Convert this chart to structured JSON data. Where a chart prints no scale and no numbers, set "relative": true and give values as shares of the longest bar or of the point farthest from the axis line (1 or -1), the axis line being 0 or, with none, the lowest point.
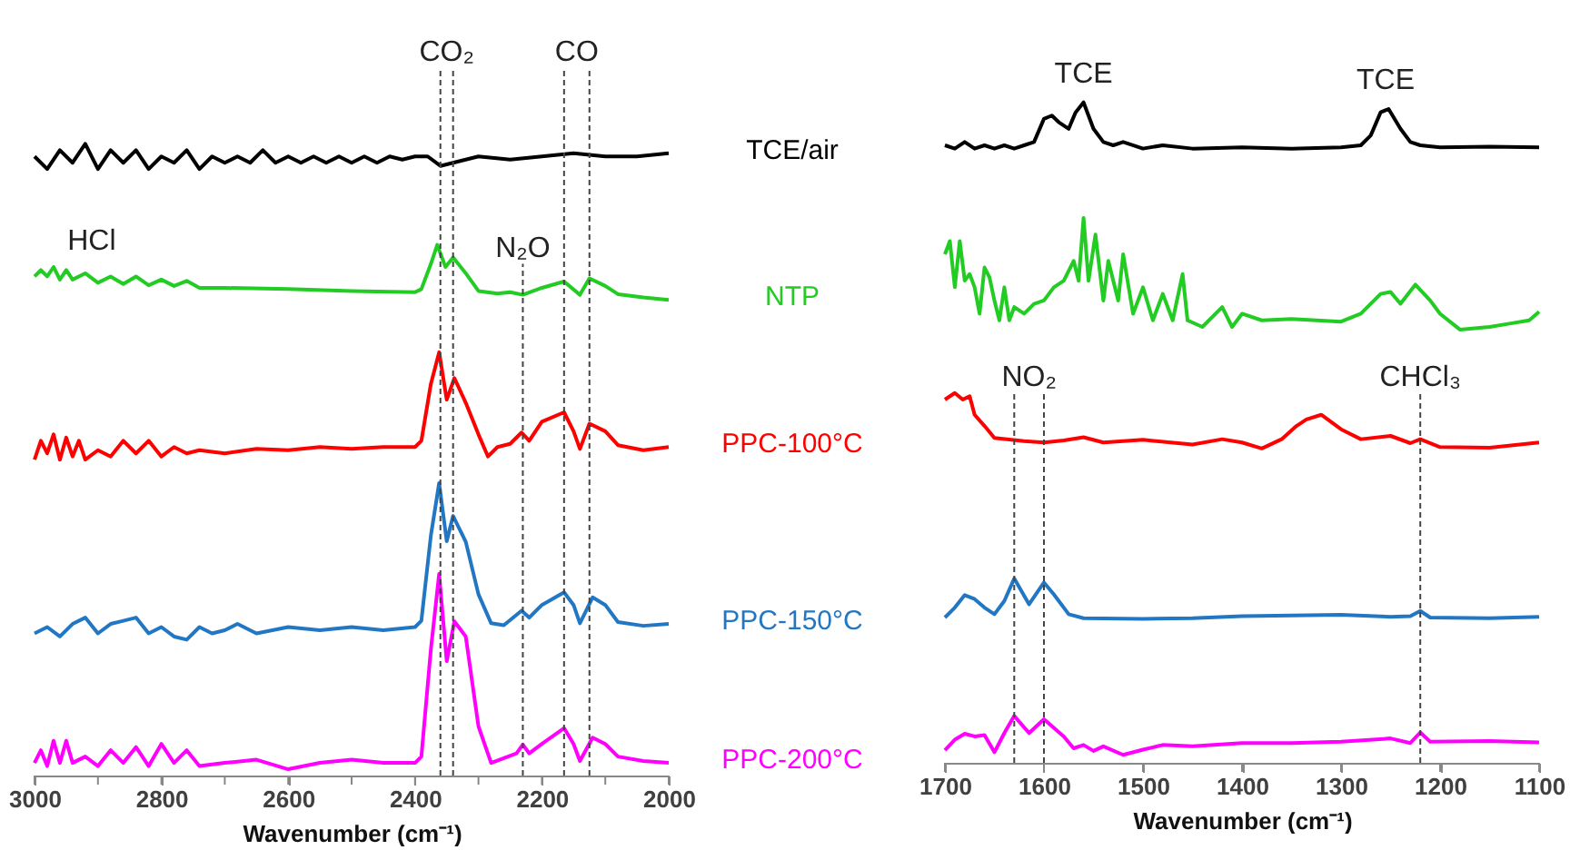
{
  "chart_data": [
    {
      "type": "line",
      "relative": true,
      "xlabel": "Wavenumber (cm⁻¹)",
      "xlim": [
        3000,
        2000
      ],
      "xticks": [
        3000,
        {
          "value": 2900,
          "label": null
        },
        2800,
        {
          "value": 2700,
          "label": null
        },
        2600,
        {
          "value": 2500,
          "label": null
        },
        2400,
        {
          "value": 2300,
          "label": null
        },
        2200,
        {
          "value": 2100,
          "label": null
        },
        2000
      ],
      "line_style": "solid",
      "series": [
        {
          "name": "TCE/air",
          "color": "#000000",
          "x": [
            3000,
            2980,
            2960,
            2940,
            2920,
            2900,
            2880,
            2860,
            2840,
            2820,
            2800,
            2780,
            2760,
            2740,
            2720,
            2700,
            2680,
            2660,
            2640,
            2620,
            2600,
            2580,
            2560,
            2540,
            2520,
            2500,
            2480,
            2460,
            2440,
            2420,
            2400,
            2380,
            2360,
            2340,
            2320,
            2300,
            2250,
            2200,
            2150,
            2100,
            2050,
            2000
          ],
          "values": [
            0.98,
            0.96,
            0.99,
            0.97,
            1.0,
            0.96,
            0.99,
            0.97,
            0.99,
            0.96,
            0.98,
            0.97,
            0.99,
            0.96,
            0.98,
            0.97,
            0.98,
            0.97,
            0.99,
            0.97,
            0.98,
            0.97,
            0.98,
            0.97,
            0.98,
            0.97,
            0.98,
            0.97,
            0.98,
            0.975,
            0.98,
            0.98,
            0.965,
            0.97,
            0.975,
            0.98,
            0.975,
            0.98,
            0.985,
            0.98,
            0.98,
            0.985
          ]
        },
        {
          "name": "NTP",
          "color": "#22cc22",
          "x": [
            3000,
            2990,
            2980,
            2970,
            2960,
            2950,
            2940,
            2920,
            2900,
            2880,
            2860,
            2840,
            2820,
            2800,
            2780,
            2760,
            2740,
            2700,
            2600,
            2500,
            2400,
            2390,
            2375,
            2365,
            2352,
            2340,
            2320,
            2300,
            2270,
            2250,
            2230,
            2200,
            2165,
            2140,
            2125,
            2100,
            2080,
            2040,
            2000
          ],
          "values": [
            0.79,
            0.8,
            0.79,
            0.805,
            0.785,
            0.8,
            0.785,
            0.795,
            0.78,
            0.79,
            0.778,
            0.79,
            0.776,
            0.785,
            0.775,
            0.783,
            0.772,
            0.772,
            0.77,
            0.767,
            0.765,
            0.77,
            0.81,
            0.84,
            0.805,
            0.82,
            0.795,
            0.767,
            0.763,
            0.765,
            0.761,
            0.772,
            0.782,
            0.761,
            0.787,
            0.775,
            0.762,
            0.757,
            0.753
          ]
        },
        {
          "name": "PPC-100°C",
          "color": "#ff0000",
          "x": [
            3000,
            2990,
            2980,
            2970,
            2960,
            2950,
            2940,
            2930,
            2920,
            2900,
            2880,
            2860,
            2840,
            2820,
            2800,
            2780,
            2760,
            2740,
            2700,
            2650,
            2600,
            2550,
            2500,
            2450,
            2400,
            2390,
            2375,
            2362,
            2350,
            2338,
            2320,
            2300,
            2285,
            2270,
            2250,
            2232,
            2220,
            2200,
            2165,
            2150,
            2140,
            2125,
            2100,
            2080,
            2040,
            2000
          ],
          "values": [
            0.5,
            0.53,
            0.51,
            0.54,
            0.5,
            0.535,
            0.505,
            0.53,
            0.5,
            0.515,
            0.505,
            0.53,
            0.51,
            0.53,
            0.505,
            0.52,
            0.51,
            0.515,
            0.51,
            0.517,
            0.515,
            0.52,
            0.517,
            0.52,
            0.52,
            0.53,
            0.62,
            0.67,
            0.595,
            0.629,
            0.59,
            0.54,
            0.505,
            0.52,
            0.525,
            0.543,
            0.53,
            0.56,
            0.575,
            0.545,
            0.517,
            0.557,
            0.545,
            0.523,
            0.515,
            0.52
          ]
        },
        {
          "name": "PPC-150°C",
          "color": "#2277c4",
          "x": [
            3000,
            2980,
            2960,
            2940,
            2920,
            2900,
            2880,
            2860,
            2840,
            2820,
            2800,
            2780,
            2760,
            2740,
            2720,
            2700,
            2680,
            2650,
            2600,
            2550,
            2500,
            2450,
            2400,
            2390,
            2375,
            2362,
            2350,
            2340,
            2320,
            2300,
            2280,
            2260,
            2232,
            2220,
            2200,
            2165,
            2150,
            2140,
            2120,
            2100,
            2080,
            2040,
            2000
          ],
          "values": [
            0.225,
            0.235,
            0.22,
            0.24,
            0.25,
            0.225,
            0.24,
            0.245,
            0.25,
            0.225,
            0.235,
            0.22,
            0.215,
            0.235,
            0.225,
            0.23,
            0.24,
            0.225,
            0.235,
            0.23,
            0.235,
            0.23,
            0.235,
            0.245,
            0.38,
            0.463,
            0.371,
            0.411,
            0.37,
            0.287,
            0.241,
            0.238,
            0.261,
            0.25,
            0.27,
            0.29,
            0.27,
            0.241,
            0.282,
            0.27,
            0.243,
            0.237,
            0.24
          ]
        },
        {
          "name": "PPC-200°C",
          "color": "#ff00ff",
          "x": [
            3000,
            2990,
            2980,
            2970,
            2960,
            2950,
            2940,
            2920,
            2900,
            2880,
            2860,
            2840,
            2820,
            2800,
            2780,
            2760,
            2740,
            2700,
            2650,
            2600,
            2550,
            2500,
            2450,
            2400,
            2390,
            2375,
            2362,
            2350,
            2338,
            2320,
            2300,
            2280,
            2240,
            2230,
            2220,
            2200,
            2165,
            2150,
            2140,
            2120,
            2100,
            2080,
            2040,
            2000
          ],
          "values": [
            0.02,
            0.04,
            0.015,
            0.055,
            0.02,
            0.055,
            0.02,
            0.03,
            0.015,
            0.04,
            0.02,
            0.045,
            0.015,
            0.05,
            0.02,
            0.04,
            0.015,
            0.02,
            0.025,
            0.01,
            0.02,
            0.025,
            0.02,
            0.02,
            0.03,
            0.2,
            0.319,
            0.181,
            0.244,
            0.22,
            0.078,
            0.02,
            0.035,
            0.049,
            0.035,
            0.05,
            0.075,
            0.05,
            0.023,
            0.06,
            0.05,
            0.03,
            0.023,
            0.02
          ]
        }
      ],
      "ref_lines": [
        {
          "axis": "x",
          "value": 2360,
          "label": "CO₂",
          "line_style": "dashed"
        },
        {
          "axis": "x",
          "value": 2340,
          "label": null,
          "line_style": "dashed"
        },
        {
          "axis": "x",
          "value": 2230,
          "label": "N₂O",
          "line_style": "dashed"
        },
        {
          "axis": "x",
          "value": 2165,
          "label": "CO",
          "line_style": "dashed"
        },
        {
          "axis": "x",
          "value": 2125,
          "label": null,
          "line_style": "dashed"
        }
      ],
      "annotations": [
        {
          "text": "HCl",
          "x": 2910,
          "y": 0.8
        }
      ]
    },
    {
      "type": "line",
      "relative": true,
      "xlabel": "Wavenumber (cm⁻¹)",
      "xlim": [
        1700,
        1100
      ],
      "xticks": [
        1700,
        1600,
        1500,
        1400,
        1300,
        1200,
        1100
      ],
      "line_style": "solid",
      "series": [
        {
          "color": "#000000",
          "x": [
            1700,
            1690,
            1680,
            1670,
            1660,
            1650,
            1640,
            1630,
            1620,
            1610,
            1600,
            1592,
            1585,
            1575,
            1568,
            1560,
            1550,
            1540,
            1530,
            1520,
            1500,
            1480,
            1450,
            1400,
            1350,
            1300,
            1280,
            1270,
            1260,
            1252,
            1240,
            1230,
            1220,
            1200,
            1150,
            1100
          ],
          "values": [
            0.935,
            0.93,
            0.94,
            0.93,
            0.935,
            0.93,
            0.935,
            0.93,
            0.935,
            0.94,
            0.975,
            0.98,
            0.97,
            0.96,
            0.985,
            1.0,
            0.96,
            0.94,
            0.935,
            0.94,
            0.93,
            0.935,
            0.93,
            0.932,
            0.93,
            0.932,
            0.935,
            0.95,
            0.985,
            0.99,
            0.96,
            0.94,
            0.935,
            0.932,
            0.933,
            0.932
          ]
        },
        {
          "color": "#22cc22",
          "x": [
            1700,
            1695,
            1690,
            1685,
            1680,
            1675,
            1670,
            1665,
            1660,
            1655,
            1650,
            1645,
            1640,
            1635,
            1630,
            1620,
            1610,
            1600,
            1590,
            1580,
            1570,
            1565,
            1560,
            1555,
            1548,
            1540,
            1535,
            1525,
            1520,
            1510,
            1500,
            1490,
            1480,
            1470,
            1460,
            1455,
            1440,
            1420,
            1410,
            1400,
            1380,
            1350,
            1300,
            1280,
            1260,
            1250,
            1240,
            1225,
            1210,
            1200,
            1180,
            1150,
            1130,
            1110,
            1100
          ],
          "values": [
            0.77,
            0.79,
            0.72,
            0.79,
            0.73,
            0.74,
            0.72,
            0.68,
            0.75,
            0.735,
            0.7,
            0.67,
            0.72,
            0.67,
            0.69,
            0.68,
            0.695,
            0.7,
            0.72,
            0.73,
            0.76,
            0.73,
            0.825,
            0.73,
            0.8,
            0.7,
            0.76,
            0.7,
            0.77,
            0.68,
            0.72,
            0.67,
            0.71,
            0.67,
            0.74,
            0.67,
            0.66,
            0.69,
            0.66,
            0.68,
            0.67,
            0.672,
            0.668,
            0.68,
            0.71,
            0.713,
            0.695,
            0.724,
            0.7,
            0.68,
            0.656,
            0.66,
            0.665,
            0.67,
            0.683
          ]
        },
        {
          "color": "#ff0000",
          "x": [
            1700,
            1690,
            1682,
            1675,
            1670,
            1660,
            1650,
            1620,
            1600,
            1580,
            1560,
            1540,
            1500,
            1450,
            1420,
            1400,
            1380,
            1360,
            1345,
            1335,
            1320,
            1300,
            1280,
            1250,
            1230,
            1220,
            1200,
            1150,
            1100
          ],
          "values": [
            0.55,
            0.56,
            0.55,
            0.555,
            0.527,
            0.51,
            0.492,
            0.487,
            0.485,
            0.488,
            0.493,
            0.485,
            0.489,
            0.482,
            0.49,
            0.485,
            0.476,
            0.49,
            0.51,
            0.52,
            0.527,
            0.505,
            0.49,
            0.495,
            0.484,
            0.49,
            0.478,
            0.477,
            0.485
          ]
        },
        {
          "color": "#2277c4",
          "x": [
            1700,
            1690,
            1680,
            1670,
            1660,
            1650,
            1640,
            1630,
            1615,
            1600,
            1590,
            1575,
            1560,
            1500,
            1450,
            1400,
            1350,
            1300,
            1250,
            1230,
            1220,
            1210,
            1150,
            1100
          ],
          "values": [
            0.22,
            0.235,
            0.254,
            0.248,
            0.235,
            0.225,
            0.245,
            0.279,
            0.24,
            0.273,
            0.255,
            0.225,
            0.219,
            0.218,
            0.219,
            0.222,
            0.223,
            0.224,
            0.221,
            0.222,
            0.23,
            0.22,
            0.219,
            0.221
          ]
        },
        {
          "color": "#ff00ff",
          "x": [
            1700,
            1690,
            1680,
            1670,
            1660,
            1650,
            1640,
            1630,
            1615,
            1600,
            1580,
            1570,
            1560,
            1550,
            1540,
            1520,
            1500,
            1480,
            1450,
            1400,
            1350,
            1300,
            1250,
            1230,
            1220,
            1210,
            1150,
            1100
          ],
          "values": [
            0.019,
            0.035,
            0.044,
            0.04,
            0.042,
            0.016,
            0.045,
            0.071,
            0.045,
            0.066,
            0.04,
            0.022,
            0.027,
            0.018,
            0.025,
            0.012,
            0.02,
            0.027,
            0.025,
            0.03,
            0.03,
            0.032,
            0.037,
            0.03,
            0.046,
            0.032,
            0.033,
            0.031
          ]
        }
      ],
      "ref_lines": [
        {
          "axis": "x",
          "value": 1630,
          "label": "NO₂",
          "line_style": "dashed"
        },
        {
          "axis": "x",
          "value": 1600,
          "label": null,
          "line_style": "dashed"
        },
        {
          "axis": "x",
          "value": 1220,
          "label": "CHCl₃",
          "line_style": "dashed"
        }
      ],
      "annotations": [
        {
          "text": "TCE",
          "x": 1560,
          "y": 1.0
        },
        {
          "text": "TCE",
          "x": 1255,
          "y": 0.99
        }
      ]
    }
  ]
}
